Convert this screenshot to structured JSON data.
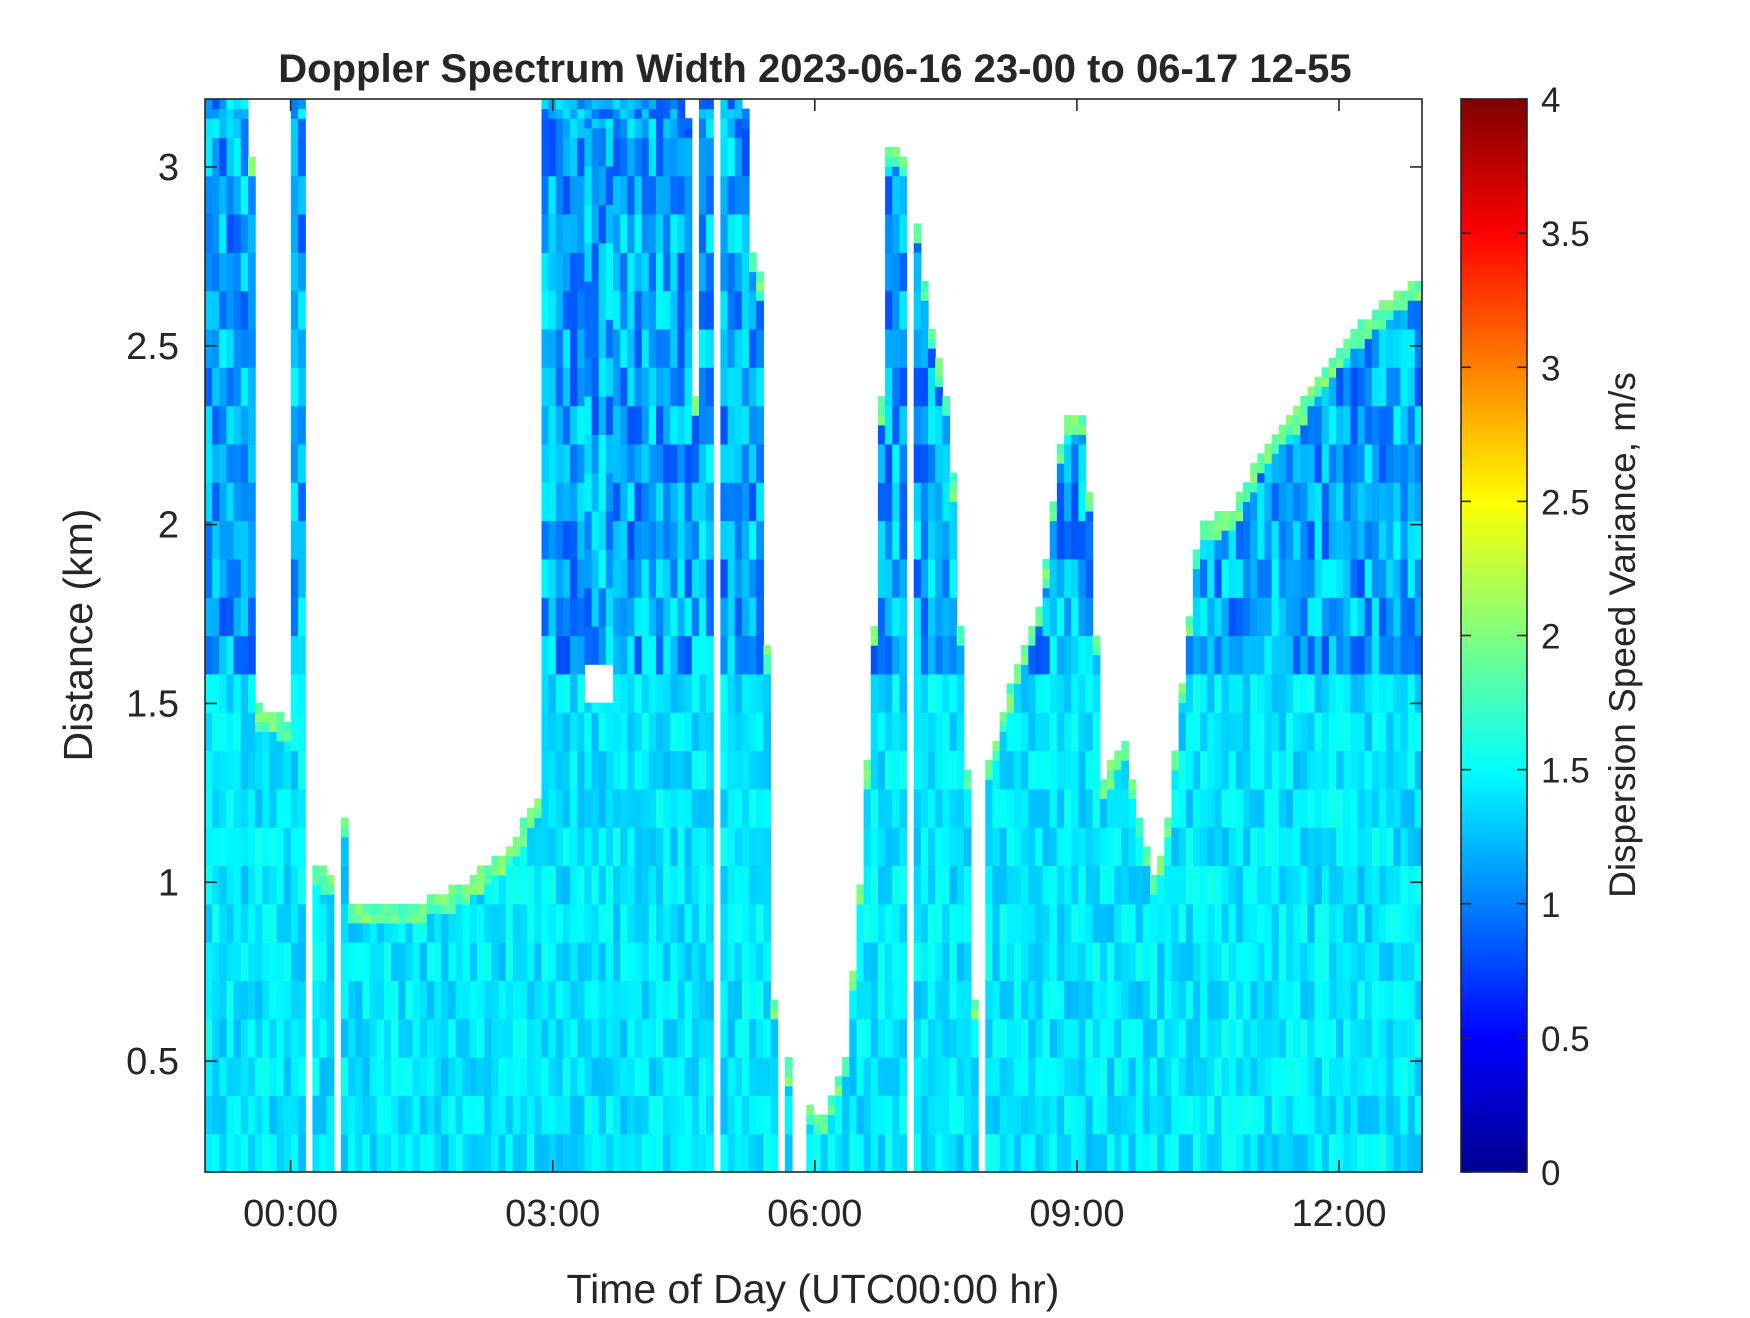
{
  "chart_data": {
    "type": "heatmap",
    "title": "Doppler Spectrum Width 2023-06-16 23-00 to 06-17 12-55",
    "xlabel": "Time of Day (UTC00:00 hr)",
    "ylabel": "Distance (km)",
    "colorbar_label": "Dispersion Speed Variance, m/s",
    "colormap": "jet",
    "background_color": "#ffffff",
    "xlim_hours": [
      -0.98,
      12.95
    ],
    "ylim_km": [
      0.19,
      3.19
    ],
    "clim": [
      0,
      4
    ],
    "x_ticks": [
      {
        "value": 0,
        "label": "00:00"
      },
      {
        "value": 3,
        "label": "03:00"
      },
      {
        "value": 6,
        "label": "06:00"
      },
      {
        "value": 9,
        "label": "09:00"
      },
      {
        "value": 12,
        "label": "12:00"
      }
    ],
    "y_ticks": [
      {
        "value": 0.5,
        "label": "0.5"
      },
      {
        "value": 1,
        "label": "1"
      },
      {
        "value": 1.5,
        "label": "1.5"
      },
      {
        "value": 2,
        "label": "2"
      },
      {
        "value": 2.5,
        "label": "2.5"
      },
      {
        "value": 3,
        "label": "3"
      }
    ],
    "colorbar_ticks": [
      {
        "value": 0,
        "label": "0"
      },
      {
        "value": 0.5,
        "label": "0.5"
      },
      {
        "value": 1,
        "label": "1"
      },
      {
        "value": 1.5,
        "label": "1.5"
      },
      {
        "value": 2,
        "label": "2"
      },
      {
        "value": 2.5,
        "label": "2.5"
      },
      {
        "value": 3,
        "label": "3"
      },
      {
        "value": 3.5,
        "label": "3.5"
      },
      {
        "value": 4,
        "label": "4"
      }
    ],
    "typical_values": {
      "boundary_layer": 1.4,
      "aloft": 1.15,
      "layer_top_edge": 1.9
    },
    "signal_top_km": [
      [
        -0.98,
        3.19
      ],
      [
        -0.45,
        3.19
      ],
      [
        -0.42,
        1.5
      ],
      [
        0.0,
        1.45
      ],
      [
        0.03,
        3.19
      ],
      [
        0.2,
        3.19
      ],
      [
        0.22,
        1.05
      ],
      [
        0.55,
        1.02
      ],
      [
        0.6,
        3.19
      ],
      [
        0.62,
        0.95
      ],
      [
        1.5,
        0.95
      ],
      [
        2.0,
        1.0
      ],
      [
        2.5,
        1.1
      ],
      [
        2.85,
        1.25
      ],
      [
        2.9,
        3.19
      ],
      [
        4.55,
        3.19
      ],
      [
        4.6,
        0.78
      ],
      [
        4.65,
        3.19
      ],
      [
        5.2,
        3.19
      ],
      [
        5.3,
        2.7
      ],
      [
        5.4,
        2.7
      ],
      [
        5.5,
        0.7
      ],
      [
        5.65,
        0.55
      ],
      [
        5.8,
        0.4
      ],
      [
        6.1,
        0.35
      ],
      [
        6.35,
        0.5
      ],
      [
        6.55,
        1.1
      ],
      [
        6.7,
        1.8
      ],
      [
        6.85,
        3.1
      ],
      [
        7.1,
        3.0
      ],
      [
        7.3,
        2.6
      ],
      [
        7.55,
        2.3
      ],
      [
        7.75,
        1.3
      ],
      [
        7.85,
        0.5
      ],
      [
        7.95,
        1.3
      ],
      [
        8.3,
        1.6
      ],
      [
        8.6,
        1.8
      ],
      [
        8.85,
        2.3
      ],
      [
        9.1,
        2.3
      ],
      [
        9.3,
        1.3
      ],
      [
        9.55,
        1.4
      ],
      [
        9.7,
        1.2
      ],
      [
        9.9,
        1.0
      ],
      [
        10.05,
        1.2
      ],
      [
        10.2,
        1.55
      ],
      [
        10.4,
        2.0
      ],
      [
        10.8,
        2.05
      ],
      [
        11.1,
        2.2
      ],
      [
        11.6,
        2.35
      ],
      [
        12.0,
        2.5
      ],
      [
        12.4,
        2.6
      ],
      [
        12.95,
        2.7
      ]
    ],
    "signal_gaps_hours": [
      [
        0.18,
        0.25
      ],
      [
        0.5,
        0.55
      ],
      [
        4.72,
        4.78
      ],
      [
        4.85,
        4.9
      ],
      [
        5.05,
        5.12
      ],
      [
        5.6,
        5.68
      ],
      [
        5.78,
        5.88
      ],
      [
        7.05,
        7.1
      ],
      [
        7.88,
        7.92
      ]
    ],
    "clear_patches": [
      {
        "t": [
          3.35,
          3.7
        ],
        "km": [
          1.5,
          1.6
        ]
      },
      {
        "t": [
          6.0,
          6.45
        ],
        "km": [
          1.65,
          3.19
        ]
      }
    ]
  }
}
